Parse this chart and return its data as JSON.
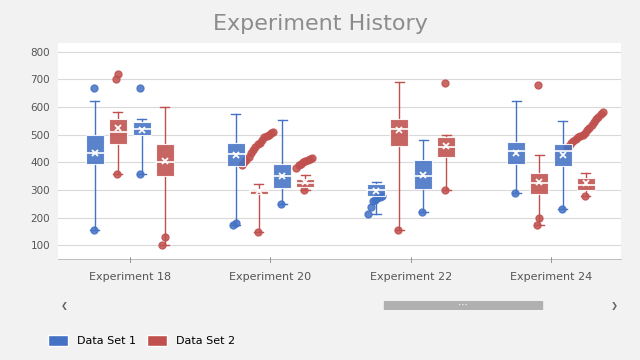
{
  "title": "Experiment History",
  "title_color": "#8c8c8c",
  "title_fontsize": 16,
  "experiments": [
    "Experiment 18",
    "Experiment 20",
    "Experiment 22",
    "Experiment 24"
  ],
  "ylim": [
    50,
    830
  ],
  "yticks": [
    100,
    200,
    300,
    400,
    500,
    600,
    700,
    800
  ],
  "bg_color": "#f2f2f2",
  "plot_bg": "#ffffff",
  "grid_color": "#d9d9d9",
  "blue_fill": "#4472c4",
  "red_fill": "#c0504d",
  "boxes": {
    "exp18": {
      "blue": {
        "whislo": 155,
        "q1": 395,
        "med": 435,
        "q3": 500,
        "whishi": 620,
        "mean": 435,
        "fliers_low": [
          155
        ],
        "fliers_high": [
          670
        ]
      },
      "red": {
        "whislo": 358,
        "q1": 465,
        "med": 510,
        "q3": 555,
        "whishi": 580,
        "mean": 525,
        "fliers_low": [
          358
        ],
        "fliers_high": [
          700,
          718
        ]
      }
    },
    "exp18b": {
      "blue": {
        "whislo": 358,
        "q1": 500,
        "med": 520,
        "q3": 545,
        "whishi": 555,
        "mean": 515,
        "fliers_low": [
          358
        ],
        "fliers_high": [
          670
        ]
      },
      "red": {
        "whislo": 100,
        "q1": 350,
        "med": 400,
        "q3": 465,
        "whishi": 600,
        "mean": 405,
        "fliers_low": [
          100,
          130
        ],
        "fliers_high": []
      }
    },
    "exp20": {
      "blue": {
        "whislo": 175,
        "q1": 385,
        "med": 430,
        "q3": 470,
        "whishi": 575,
        "mean": 425,
        "fliers_low": [
          175,
          180
        ],
        "fliers_high": []
      },
      "red": {
        "whislo": 150,
        "q1": 285,
        "med": 295,
        "q3": 305,
        "whishi": 320,
        "mean": 295,
        "fliers_low": [
          150
        ],
        "fliers_high": [
          390,
          400,
          410,
          420,
          435,
          445,
          455,
          465,
          470,
          480,
          490,
          495,
          500,
          505,
          510
        ]
      }
    },
    "exp20b": {
      "blue": {
        "whislo": 248,
        "q1": 308,
        "med": 350,
        "q3": 395,
        "whishi": 552,
        "mean": 352,
        "fliers_low": [
          248
        ],
        "fliers_high": []
      },
      "red": {
        "whislo": 300,
        "q1": 312,
        "med": 325,
        "q3": 340,
        "whishi": 355,
        "mean": 328,
        "fliers_low": [
          300
        ],
        "fliers_high": [
          380,
          390,
          395,
          400,
          405,
          408,
          412,
          415
        ]
      }
    },
    "exp22": {
      "blue": {
        "whislo": 215,
        "q1": 280,
        "med": 300,
        "q3": 320,
        "whishi": 330,
        "mean": 295,
        "fliers_low": [
          215,
          240,
          260,
          265,
          270,
          275,
          280
        ],
        "fliers_high": []
      },
      "red": {
        "whislo": 155,
        "q1": 460,
        "med": 520,
        "q3": 555,
        "whishi": 690,
        "mean": 515,
        "fliers_low": [
          155
        ],
        "fliers_high": []
      }
    },
    "exp22b": {
      "blue": {
        "whislo": 220,
        "q1": 305,
        "med": 350,
        "q3": 410,
        "whishi": 480,
        "mean": 355,
        "fliers_low": [
          220
        ],
        "fliers_high": []
      },
      "red": {
        "whislo": 300,
        "q1": 420,
        "med": 455,
        "q3": 490,
        "whishi": 500,
        "mean": 460,
        "fliers_low": [
          300
        ],
        "fliers_high": [
          685
        ]
      }
    },
    "exp24": {
      "blue": {
        "whislo": 290,
        "q1": 395,
        "med": 440,
        "q3": 475,
        "whishi": 620,
        "mean": 435,
        "fliers_low": [
          290
        ],
        "fliers_high": []
      },
      "red": {
        "whislo": 175,
        "q1": 285,
        "med": 325,
        "q3": 360,
        "whishi": 425,
        "mean": 330,
        "fliers_low": [
          175,
          200
        ],
        "fliers_high": [
          680
        ]
      }
    },
    "exp24b": {
      "blue": {
        "whislo": 230,
        "q1": 385,
        "med": 440,
        "q3": 465,
        "whishi": 548,
        "mean": 425,
        "fliers_low": [
          230
        ],
        "fliers_high": []
      },
      "red": {
        "whislo": 280,
        "q1": 300,
        "med": 318,
        "q3": 345,
        "whishi": 360,
        "mean": 325,
        "fliers_low": [
          280
        ],
        "fliers_high": [
          450,
          460,
          470,
          478,
          485,
          490,
          495,
          500,
          505,
          515,
          525,
          535,
          545,
          555,
          565,
          575,
          582
        ]
      }
    }
  }
}
